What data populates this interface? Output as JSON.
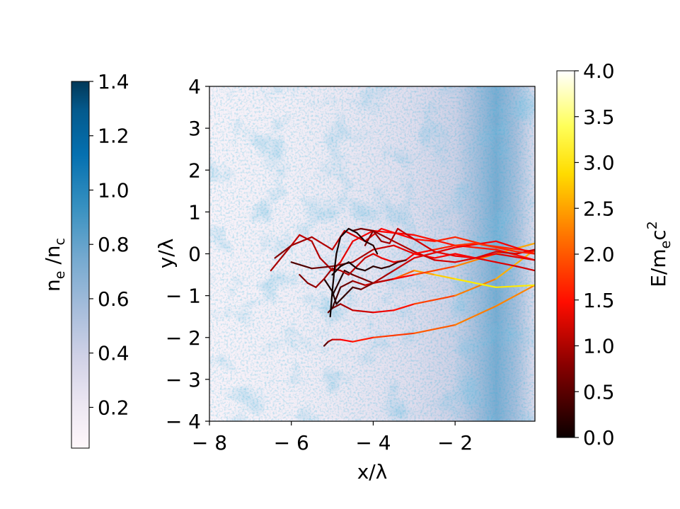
{
  "chart_data": {
    "type": "heatmap",
    "title": "",
    "xlabel": "x/λ",
    "ylabel": "y/λ",
    "xlim": [
      -8,
      -0.05
    ],
    "ylim": [
      -4,
      4
    ],
    "x_ticks": [
      -8,
      -6,
      -4,
      -2
    ],
    "x_tick_labels": [
      "− 8",
      "− 6",
      "− 4",
      "− 2"
    ],
    "y_ticks": [
      -4,
      -3,
      -2,
      -1,
      0,
      1,
      2,
      3,
      4
    ],
    "y_tick_labels": [
      "− 4",
      "− 3",
      "− 2",
      "− 1",
      "0",
      "1",
      "2",
      "3",
      "4"
    ],
    "density_map": {
      "label": "n_e /n_c",
      "colormap": "PuBu",
      "range": [
        0.05,
        1.4
      ],
      "ticks": [
        0.2,
        0.4,
        0.6,
        0.8,
        1.0,
        1.2,
        1.4
      ],
      "tick_labels": [
        "0.2",
        "0.4",
        "0.6",
        "0.8",
        "1.0",
        "1.2",
        "1.4"
      ],
      "profile_x": [
        -8,
        -6,
        -5,
        -4,
        -3,
        -2,
        -1.5,
        -1,
        -0.5,
        -0.05
      ],
      "profile_value": [
        0.1,
        0.15,
        0.2,
        0.25,
        0.3,
        0.4,
        0.55,
        0.7,
        0.55,
        0.3
      ]
    },
    "energy_colorbar": {
      "label": "E/m_ec^2",
      "colormap": "hot",
      "range": [
        0,
        4
      ],
      "ticks": [
        0.0,
        0.5,
        1.0,
        1.5,
        2.0,
        2.5,
        3.0,
        3.5,
        4.0
      ],
      "tick_labels": [
        "0.0",
        "0.5",
        "1.0",
        "1.5",
        "2.0",
        "2.5",
        "3.0",
        "3.5",
        "4.0"
      ]
    },
    "series": [
      {
        "x": [
          -5.2,
          -5.1,
          -5.0,
          -4.8,
          -4.5,
          -4.0,
          -3.0,
          -2.0,
          -1.0,
          -0.05
        ],
        "y": [
          -2.2,
          -2.1,
          -2.05,
          -2.05,
          -2.1,
          -2.0,
          -1.9,
          -1.7,
          -1.25,
          -0.75
        ],
        "e": [
          0.3,
          0.6,
          1.0,
          1.3,
          1.5,
          1.7,
          1.9,
          2.1,
          2.3,
          2.2
        ]
      },
      {
        "x": [
          -5.1,
          -5.0,
          -4.8,
          -4.5,
          -4.0,
          -3.5,
          -3.0,
          -2.0,
          -1.0,
          -0.05
        ],
        "y": [
          -1.4,
          -1.3,
          -1.2,
          -1.35,
          -1.4,
          -1.35,
          -1.2,
          -1.0,
          -0.6,
          0.1
        ],
        "e": [
          0.4,
          0.6,
          0.8,
          1.0,
          1.2,
          1.4,
          1.7,
          2.0,
          2.4,
          2.6
        ]
      },
      {
        "x": [
          -5.0,
          -4.8,
          -4.5,
          -4.2,
          -4.0,
          -3.5,
          -3.0,
          -2.5,
          -2.0,
          -1.5,
          -1.0,
          -0.05
        ],
        "y": [
          -1.3,
          -0.8,
          -0.65,
          -0.75,
          -0.7,
          -0.6,
          -0.4,
          -0.5,
          -0.6,
          -0.7,
          -0.8,
          -0.75
        ],
        "e": [
          0.2,
          0.4,
          0.7,
          1.0,
          1.3,
          1.8,
          2.2,
          2.6,
          2.8,
          2.9,
          2.9,
          2.8
        ]
      },
      {
        "x": [
          -5.0,
          -4.7,
          -4.5,
          -4.0,
          -3.5,
          -3.0,
          -2.0,
          -1.0,
          -0.05
        ],
        "y": [
          -1.0,
          -0.4,
          -0.5,
          -0.7,
          -0.6,
          -0.5,
          -0.3,
          0.0,
          0.25
        ],
        "e": [
          0.1,
          0.2,
          0.4,
          0.8,
          1.2,
          1.6,
          2.1,
          2.4,
          2.5
        ]
      },
      {
        "x": [
          -6.5,
          -6.0,
          -5.8,
          -5.5,
          -5.3,
          -5.1,
          -5.0,
          -4.8,
          -4.5,
          -4.0,
          -3.0,
          -2.0,
          -1.0,
          -0.05
        ],
        "y": [
          -0.4,
          0.2,
          0.45,
          0.3,
          -0.1,
          -0.3,
          -0.4,
          -0.2,
          0.3,
          0.55,
          0.45,
          0.2,
          0.1,
          -0.15
        ],
        "e": [
          0.8,
          1.0,
          1.1,
          1.0,
          0.9,
          1.0,
          1.1,
          1.2,
          1.3,
          1.4,
          1.5,
          1.6,
          1.6,
          1.5
        ]
      },
      {
        "x": [
          -6.4,
          -6.0,
          -5.5,
          -5.0,
          -4.7,
          -4.2,
          -3.8,
          -3.0,
          -2.5,
          -2.0,
          -1.2,
          -0.05
        ],
        "y": [
          -0.1,
          0.2,
          0.4,
          0.1,
          0.55,
          0.3,
          0.6,
          0.35,
          0.3,
          0.4,
          0.2,
          0.05
        ],
        "e": [
          0.6,
          0.8,
          0.9,
          1.0,
          1.1,
          1.2,
          1.3,
          1.5,
          1.6,
          1.7,
          1.7,
          1.7
        ]
      },
      {
        "x": [
          -6.0,
          -5.5,
          -5.0,
          -4.5,
          -4.0,
          -3.5,
          -3.0,
          -2.5,
          -2.0,
          -1.5,
          -1.0,
          -0.05
        ],
        "y": [
          -0.2,
          -0.35,
          -0.3,
          -0.2,
          0.1,
          0.2,
          0.0,
          -0.1,
          0.0,
          -0.1,
          0.0,
          -0.15
        ],
        "e": [
          0.3,
          0.5,
          0.6,
          0.8,
          1.0,
          1.2,
          1.3,
          1.4,
          1.4,
          1.4,
          1.3,
          1.2
        ]
      },
      {
        "x": [
          -4.5,
          -4.3,
          -4.0,
          -3.5,
          -3.0,
          -2.5,
          -2.0,
          -1.5,
          -1.0,
          -0.5,
          -0.05
        ],
        "y": [
          0.55,
          0.6,
          0.55,
          0.3,
          0.05,
          -0.15,
          -0.2,
          -0.1,
          0.05,
          0.0,
          0.1
        ],
        "e": [
          0.5,
          0.6,
          0.7,
          0.9,
          1.0,
          1.1,
          1.2,
          1.2,
          1.2,
          1.1,
          1.1
        ]
      },
      {
        "x": [
          -5.2,
          -5.0,
          -4.9,
          -4.7,
          -4.5,
          -4.3,
          -4.0,
          -3.5,
          -3.0,
          -2.0,
          -1.0,
          -0.05
        ],
        "y": [
          -0.6,
          -0.9,
          -1.2,
          -1.0,
          -0.8,
          -0.85,
          -0.7,
          -0.4,
          -0.1,
          0.15,
          0.3,
          0.0
        ],
        "e": [
          0.1,
          0.1,
          0.15,
          0.2,
          0.3,
          0.5,
          0.8,
          1.0,
          1.2,
          1.3,
          1.4,
          1.3
        ]
      },
      {
        "x": [
          -5.8,
          -5.6,
          -5.4,
          -5.2,
          -5.0,
          -4.8,
          -4.6,
          -4.4,
          -4.2,
          -4.0,
          -3.8,
          -3.5,
          -3.2,
          -3.0,
          -2.5,
          -2.0,
          -1.5,
          -1.0,
          -0.5,
          -0.05
        ],
        "y": [
          -0.5,
          -0.7,
          -0.8,
          -0.6,
          -0.35,
          -0.4,
          -0.5,
          -0.3,
          -0.1,
          0.0,
          -0.1,
          -0.2,
          -0.15,
          0.0,
          0.1,
          0.2,
          0.25,
          0.15,
          0.05,
          0.0
        ],
        "e": [
          0.6,
          0.7,
          0.8,
          0.9,
          0.8,
          0.9,
          1.0,
          1.0,
          1.1,
          1.2,
          1.3,
          1.3,
          1.3,
          1.4,
          1.6,
          1.7,
          1.8,
          1.7,
          1.7,
          1.6
        ]
      },
      {
        "x": [
          -4.2,
          -4.0,
          -3.8,
          -3.6,
          -3.4,
          -3.0,
          -2.5,
          -2.0,
          -1.5,
          -1.0,
          -0.5,
          -0.05
        ],
        "y": [
          0.2,
          0.55,
          0.3,
          0.25,
          0.6,
          0.35,
          0.05,
          -0.05,
          -0.1,
          -0.2,
          -0.3,
          -0.4
        ],
        "e": [
          0.6,
          0.7,
          0.8,
          0.9,
          1.0,
          1.1,
          1.2,
          1.3,
          1.3,
          1.2,
          1.2,
          1.1
        ]
      },
      {
        "x": [
          -5.0,
          -4.8,
          -4.6,
          -4.4,
          -4.2,
          -4.0,
          -3.8,
          -3.6,
          -3.4,
          -3.2
        ],
        "y": [
          -0.5,
          -0.3,
          -0.2,
          -0.35,
          -0.4,
          -0.3,
          -0.35,
          -0.3,
          -0.2,
          -0.15
        ],
        "e": [
          0.05,
          0.05,
          0.1,
          0.1,
          0.15,
          0.2,
          0.2,
          0.3,
          0.4,
          0.5
        ]
      },
      {
        "x": [
          -5.05,
          -5.0,
          -4.95,
          -4.9,
          -4.8,
          -4.6,
          -4.4,
          -4.2,
          -4.0,
          -3.9
        ],
        "y": [
          -1.5,
          -0.9,
          -0.4,
          0.0,
          0.4,
          0.6,
          0.5,
          0.3,
          0.2,
          0.0
        ],
        "e": [
          0.02,
          0.03,
          0.05,
          0.05,
          0.07,
          0.08,
          0.1,
          0.12,
          0.15,
          0.15
        ]
      }
    ]
  }
}
